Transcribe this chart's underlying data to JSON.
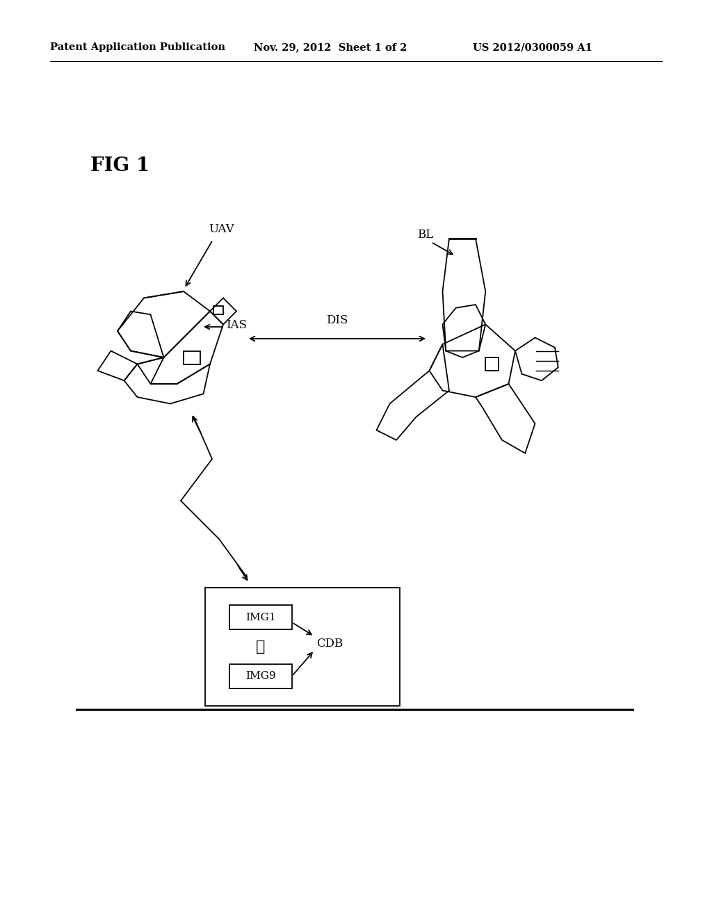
{
  "header_left": "Patent Application Publication",
  "header_mid": "Nov. 29, 2012  Sheet 1 of 2",
  "header_right": "US 2012/0300059 A1",
  "fig_label": "FIG 1",
  "label_uav": "UAV",
  "label_ias": "IAS",
  "label_dis": "DIS",
  "label_bl": "BL",
  "label_cdb": "CDB",
  "label_img1": "IMG1",
  "label_img9": "IMG9",
  "bg_color": "#ffffff",
  "line_color": "#000000",
  "fig_label_fontsize": 20,
  "header_fontsize": 10.5,
  "label_fontsize": 12
}
